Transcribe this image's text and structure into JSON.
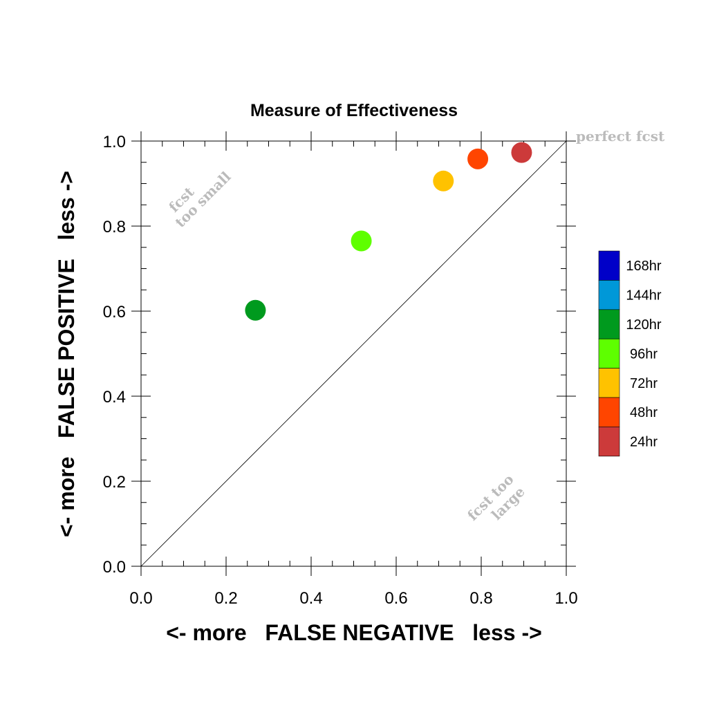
{
  "chart_data": {
    "type": "scatter",
    "title": "Measure of Effectiveness",
    "xlabel": "<- more   FALSE NEGATIVE   less ->",
    "ylabel": "<- more   FALSE POSITIVE   less ->",
    "xlim": [
      0.0,
      1.0
    ],
    "ylim": [
      0.0,
      1.0
    ],
    "x_ticks": [
      "0.0",
      "0.2",
      "0.4",
      "0.6",
      "0.8",
      "1.0"
    ],
    "y_ticks": [
      "0.0",
      "0.2",
      "0.4",
      "0.6",
      "0.8",
      "1.0"
    ],
    "grid": false,
    "diagonal_line": true,
    "annotations": {
      "perfect": "perfect fcst",
      "too_small_line1": "fcst",
      "too_small_line2": "too small",
      "too_large_line1": "fcst too",
      "too_large_line2": "large",
      "color": "#bbbbbb"
    },
    "points": [
      {
        "label": "24hr",
        "x": 0.895,
        "y": 0.973,
        "color": "#cc3a3a"
      },
      {
        "label": "48hr",
        "x": 0.792,
        "y": 0.958,
        "color": "#ff4500"
      },
      {
        "label": "72hr",
        "x": 0.711,
        "y": 0.906,
        "color": "#ffc200"
      },
      {
        "label": "96hr",
        "x": 0.518,
        "y": 0.765,
        "color": "#5eff00"
      },
      {
        "label": "120hr",
        "x": 0.269,
        "y": 0.602,
        "color": "#009a1e"
      }
    ],
    "legend": {
      "position": "right",
      "entries": [
        {
          "label": "168hr",
          "color": "#0000c8"
        },
        {
          "label": "144hr",
          "color": "#0098d8"
        },
        {
          "label": "120hr",
          "color": "#009a1e"
        },
        {
          "label": "96hr",
          "color": "#5eff00"
        },
        {
          "label": "72hr",
          "color": "#ffc200"
        },
        {
          "label": "48hr",
          "color": "#ff4500"
        },
        {
          "label": "24hr",
          "color": "#cc3a3a"
        }
      ]
    }
  }
}
